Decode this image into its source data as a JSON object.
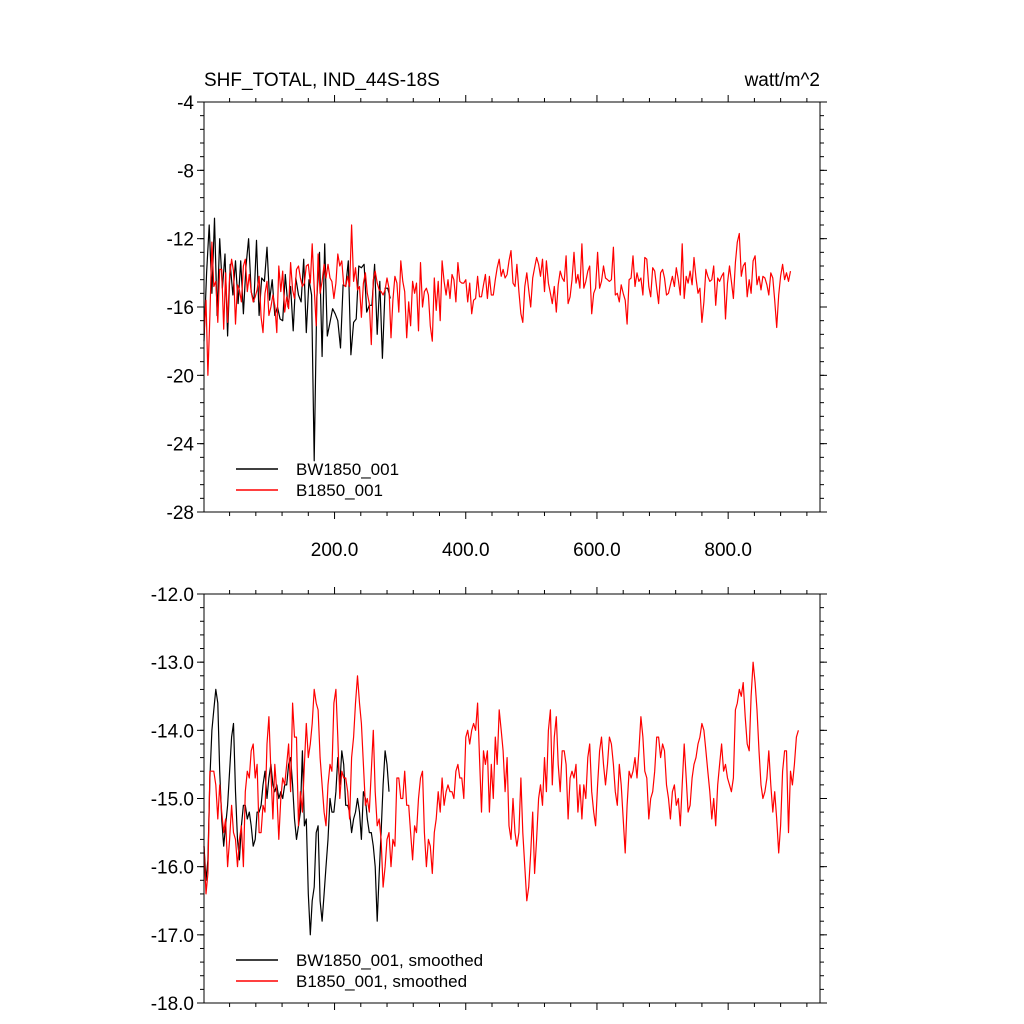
{
  "chart_data": [
    {
      "type": "line",
      "title": "SHF_TOTAL, IND_44S-18S",
      "units": "watt/m^2",
      "xlim": [
        1,
        940
      ],
      "ylim": [
        -28,
        -4
      ],
      "yticks": [
        "-4",
        "-8",
        "-12",
        "-16",
        "-20",
        "-24",
        "-28"
      ],
      "ytick_values": [
        -4,
        -8,
        -12,
        -16,
        -20,
        -24,
        -28
      ],
      "xticks": [
        "200.0",
        "400.0",
        "600.0",
        "800.0"
      ],
      "xtick_values": [
        200,
        400,
        600,
        800
      ],
      "grid": false,
      "legend_position": "bottom-left",
      "series": [
        {
          "name": "BW1850_001",
          "color": "#000000",
          "x_start": 1,
          "x_step": 4,
          "values": [
            -18.0,
            -14.0,
            -11.2,
            -15.2,
            -10.8,
            -16.5,
            -12.0,
            -14.9,
            -12.9,
            -17.7,
            -13.5,
            -15.3,
            -13.3,
            -15.8,
            -13.3,
            -16.4,
            -13.6,
            -12.0,
            -15.1,
            -15.7,
            -12.1,
            -16.5,
            -14.3,
            -14.5,
            -12.5,
            -15.6,
            -14.4,
            -16.5,
            -16.0,
            -16.7,
            -16.8,
            -14.1,
            -16.0,
            -14.8,
            -17.4,
            -14.3,
            -15.3,
            -15.7,
            -13.2,
            -17.5,
            -14.4,
            -15.3,
            -25.0,
            -15.5,
            -12.8,
            -18.9,
            -12.3,
            -17.7,
            -16.9,
            -16.1,
            -16.4,
            -16.8,
            -18.4,
            -14.7,
            -14.8,
            -13.3,
            -18.8,
            -16.9,
            -16.7,
            -13.6,
            -13.7,
            -13.5,
            -16.3,
            -15.9,
            -15.9,
            -13.5,
            -17.6,
            -14.5,
            -19.0,
            -14.9,
            -14.9,
            -15.5
          ]
        },
        {
          "name": "B1850_001",
          "color": "#ff0000",
          "x_start": 1,
          "x_step": 3,
          "values": [
            -17.6,
            -15.6,
            -20.0,
            -16.5,
            -12.2,
            -14.8,
            -14.5,
            -16.9,
            -13.8,
            -13.8,
            -17.3,
            -14.0,
            -16.9,
            -14.2,
            -13.2,
            -13.9,
            -17.0,
            -14.7,
            -15.0,
            -15.7,
            -13.6,
            -13.2,
            -15.1,
            -14.1,
            -15.1,
            -15.7,
            -15.4,
            -15.0,
            -14.2,
            -16.6,
            -17.5,
            -15.2,
            -14.5,
            -16.5,
            -16.0,
            -15.3,
            -15.9,
            -17.5,
            -13.6,
            -15.1,
            -13.9,
            -16.3,
            -15.4,
            -16.1,
            -13.4,
            -15.0,
            -15.5,
            -13.8,
            -13.6,
            -14.3,
            -14.8,
            -14.6,
            -13.6,
            -13.5,
            -14.6,
            -12.3,
            -14.9,
            -17.1,
            -12.9,
            -15.2,
            -14.5,
            -13.5,
            -14.3,
            -13.5,
            -14.3,
            -14.5,
            -15.5,
            -14.6,
            -12.9,
            -13.6,
            -13.3,
            -14.7,
            -14.8,
            -14.2,
            -14.8,
            -11.2,
            -14.5,
            -13.7,
            -15.0,
            -14.8,
            -16.6,
            -14.6,
            -14.0,
            -15.2,
            -15.8,
            -18.2,
            -14.4,
            -13.9,
            -14.6,
            -15.0,
            -15.1,
            -15.3,
            -15.0,
            -14.3,
            -14.9,
            -17.8,
            -15.6,
            -14.2,
            -14.6,
            -16.3,
            -13.3,
            -14.5,
            -15.1,
            -17.8,
            -15.7,
            -17.1,
            -14.5,
            -15.2,
            -14.6,
            -17.4,
            -13.4,
            -16.0,
            -15.1,
            -14.9,
            -15.3,
            -17.1,
            -18.0,
            -14.3,
            -16.2,
            -14.5,
            -16.8,
            -13.3,
            -14.5,
            -15.3,
            -14.4,
            -15.5,
            -14.1,
            -14.4,
            -15.7,
            -13.4,
            -14.5,
            -14.6,
            -14.6,
            -14.4,
            -15.7,
            -14.6,
            -16.4,
            -15.6,
            -15.5,
            -14.2,
            -15.4,
            -15.4,
            -14.7,
            -14.1,
            -15.5,
            -14.2,
            -15.3,
            -15.3,
            -14.4,
            -13.7,
            -13.2,
            -14.2,
            -13.8,
            -14.3,
            -14.1,
            -13.3,
            -12.7,
            -14.6,
            -14.8,
            -13.5,
            -15.1,
            -16.4,
            -16.9,
            -14.8,
            -14.0,
            -15.0,
            -16.0,
            -14.3,
            -13.7,
            -13.1,
            -13.5,
            -14.2,
            -13.2,
            -15.1,
            -13.3,
            -14.6,
            -15.2,
            -15.8,
            -14.8,
            -16.3,
            -14.7,
            -13.9,
            -14.3,
            -14.5,
            -13.0,
            -15.8,
            -15.4,
            -14.4,
            -12.8,
            -14.6,
            -14.1,
            -14.9,
            -12.3,
            -14.9,
            -14.5,
            -13.9,
            -13.6,
            -16.4,
            -15.2,
            -14.9,
            -12.8,
            -14.9,
            -14.5,
            -13.6,
            -14.3,
            -14.4,
            -14.5,
            -14.4,
            -12.5,
            -15.3,
            -15.2,
            -15.7,
            -14.7,
            -15.2,
            -15.6,
            -17.0,
            -14.4,
            -14.3,
            -13.0,
            -14.8,
            -14.0,
            -14.5,
            -14.3,
            -15.3,
            -13.1,
            -13.2,
            -14.8,
            -15.4,
            -13.7,
            -13.9,
            -14.9,
            -15.8,
            -14.0,
            -13.8,
            -14.3,
            -15.3,
            -15.2,
            -14.7,
            -14.2,
            -14.8,
            -13.7,
            -14.4,
            -15.3,
            -12.3,
            -15.5,
            -14.2,
            -14.6,
            -13.9,
            -14.7,
            -13.1,
            -14.3,
            -15.2,
            -14.9,
            -16.9,
            -15.7,
            -13.8,
            -14.2,
            -14.5,
            -14.4,
            -13.6,
            -15.9,
            -14.3,
            -14.5,
            -14.2,
            -14.0,
            -16.7,
            -14.6,
            -13.6,
            -14.5,
            -15.5,
            -13.4,
            -12.2,
            -11.7,
            -14.2,
            -13.6,
            -13.4,
            -15.4,
            -14.4,
            -15.2,
            -13.3,
            -13.0,
            -14.7,
            -14.2,
            -15.0,
            -14.2,
            -14.3,
            -14.7,
            -15.3,
            -14.0,
            -14.3,
            -15.6,
            -17.2,
            -15.3,
            -14.2,
            -13.5,
            -14.4,
            -14.0,
            -14.5,
            -13.9
          ]
        }
      ],
      "legend": [
        "BW1850_001",
        "B1850_001"
      ]
    },
    {
      "type": "line",
      "title": "",
      "xlim": [
        1,
        940
      ],
      "ylim": [
        -18.0,
        -12.0
      ],
      "yticks": [
        "-12.0",
        "-13.0",
        "-14.0",
        "-15.0",
        "-16.0",
        "-17.0",
        "-18.0"
      ],
      "ytick_values": [
        -12,
        -13,
        -14,
        -15,
        -16,
        -17,
        -18
      ],
      "xticks": [],
      "xtick_values": [
        200,
        400,
        600,
        800
      ],
      "grid": false,
      "legend_position": "bottom-left",
      "series": [
        {
          "name": "BW1850_001, smoothed",
          "color": "#000000",
          "x_start": 1,
          "x_step": 3,
          "values": [
            -15.7,
            -16.2,
            -15.9,
            -14.7,
            -14.0,
            -13.7,
            -13.4,
            -13.6,
            -14.6,
            -15.3,
            -15.7,
            -15.4,
            -15.1,
            -14.6,
            -14.1,
            -13.9,
            -14.9,
            -15.6,
            -15.9,
            -15.4,
            -15.1,
            -15.1,
            -15.3,
            -15.2,
            -15.4,
            -15.7,
            -15.6,
            -15.2,
            -15.2,
            -15.1,
            -14.8,
            -14.6,
            -15.0,
            -14.7,
            -14.5,
            -14.8,
            -14.9,
            -14.8,
            -15.0,
            -14.9,
            -15.0,
            -14.8,
            -14.8,
            -14.5,
            -14.4,
            -14.8,
            -15.3,
            -15.6,
            -15.4,
            -15.2,
            -14.3,
            -15.4,
            -15.3,
            -16.4,
            -17.0,
            -16.5,
            -16.3,
            -15.5,
            -15.4,
            -16.5,
            -16.8,
            -16.4,
            -16.0,
            -15.6,
            -15.0,
            -15.2,
            -15.2,
            -14.9,
            -14.4,
            -14.8,
            -14.3,
            -14.5,
            -15.1,
            -15.1,
            -15.2,
            -15.5,
            -15.3,
            -15.2,
            -15.0,
            -15.2,
            -15.6,
            -14.9,
            -15.0,
            -15.3,
            -15.5,
            -15.5,
            -15.7,
            -16.0,
            -16.8,
            -16.1,
            -15.5,
            -14.8,
            -14.3,
            -14.5,
            -14.9
          ]
        },
        {
          "name": "B1850_001, smoothed",
          "color": "#ff0000",
          "x_start": 1,
          "x_step": 3,
          "values": [
            -15.7,
            -16.4,
            -16.1,
            -14.6,
            -14.6,
            -14.6,
            -14.8,
            -15.3,
            -14.8,
            -15.2,
            -15.5,
            -15.3,
            -16.0,
            -15.6,
            -15.1,
            -15.5,
            -15.6,
            -16.0,
            -15.6,
            -15.4,
            -16.0,
            -14.9,
            -14.6,
            -14.7,
            -14.3,
            -14.2,
            -14.7,
            -14.5,
            -15.5,
            -15.5,
            -15.1,
            -15.2,
            -14.2,
            -13.8,
            -14.6,
            -15.3,
            -14.5,
            -14.9,
            -15.6,
            -15.0,
            -14.7,
            -14.8,
            -14.5,
            -14.2,
            -14.9,
            -13.6,
            -14.1,
            -14.1,
            -15.4,
            -14.9,
            -15.2,
            -14.5,
            -13.9,
            -14.4,
            -14.2,
            -13.9,
            -13.4,
            -13.6,
            -13.7,
            -14.4,
            -14.8,
            -15.2,
            -15.4,
            -14.8,
            -14.5,
            -14.6,
            -13.6,
            -13.4,
            -14.1,
            -15.0,
            -14.6,
            -14.7,
            -14.7,
            -14.9,
            -15.3,
            -14.4,
            -14.1,
            -13.6,
            -13.2,
            -13.6,
            -13.9,
            -14.5,
            -15.1,
            -15.0,
            -15.2,
            -14.6,
            -14.0,
            -14.9,
            -15.4,
            -15.3,
            -15.6,
            -16.3,
            -16.0,
            -15.6,
            -15.5,
            -16.0,
            -15.6,
            -15.7,
            -14.7,
            -14.7,
            -15.0,
            -15.0,
            -14.6,
            -15.1,
            -15.1,
            -15.5,
            -15.9,
            -15.4,
            -15.5,
            -15.0,
            -14.7,
            -14.6,
            -15.5,
            -16.0,
            -15.6,
            -15.7,
            -16.1,
            -15.5,
            -15.3,
            -14.9,
            -15.2,
            -14.7,
            -15.1,
            -14.9,
            -14.8,
            -14.9,
            -14.9,
            -15.0,
            -14.6,
            -14.5,
            -14.7,
            -14.7,
            -15.0,
            -14.1,
            -14.0,
            -14.2,
            -14.0,
            -13.9,
            -14.0,
            -13.6,
            -14.4,
            -15.2,
            -14.3,
            -14.5,
            -14.3,
            -15.2,
            -14.5,
            -15.0,
            -14.1,
            -14.5,
            -13.7,
            -14.0,
            -14.3,
            -14.9,
            -14.4,
            -15.4,
            -15.6,
            -15.0,
            -15.5,
            -15.7,
            -15.5,
            -14.7,
            -15.5,
            -16.0,
            -16.5,
            -16.3,
            -15.8,
            -15.2,
            -16.1,
            -15.6,
            -15.0,
            -14.8,
            -15.1,
            -14.4,
            -14.9,
            -14.0,
            -13.7,
            -14.8,
            -14.1,
            -13.8,
            -14.5,
            -14.9,
            -14.3,
            -14.3,
            -14.5,
            -15.3,
            -14.7,
            -14.6,
            -14.7,
            -14.5,
            -15.2,
            -14.8,
            -15.3,
            -14.8,
            -15.0,
            -14.4,
            -14.2,
            -14.9,
            -15.2,
            -15.4,
            -14.8,
            -14.3,
            -14.1,
            -14.5,
            -14.8,
            -14.5,
            -14.1,
            -14.2,
            -14.5,
            -14.9,
            -15.1,
            -14.5,
            -14.8,
            -15.3,
            -15.8,
            -15.1,
            -14.6,
            -14.7,
            -14.6,
            -14.4,
            -14.7,
            -14.3,
            -13.8,
            -14.1,
            -14.6,
            -14.7,
            -15.3,
            -15.0,
            -14.9,
            -14.6,
            -14.1,
            -14.1,
            -14.4,
            -14.2,
            -14.3,
            -14.8,
            -15.0,
            -15.3,
            -14.9,
            -14.8,
            -15.1,
            -15.0,
            -15.4,
            -14.8,
            -14.2,
            -14.7,
            -15.2,
            -15.1,
            -14.7,
            -14.5,
            -14.4,
            -14.2,
            -14.1,
            -13.9,
            -14.0,
            -14.3,
            -14.6,
            -14.9,
            -15.3,
            -15.0,
            -15.4,
            -14.8,
            -14.5,
            -14.2,
            -14.6,
            -14.5,
            -14.7,
            -14.8,
            -14.9,
            -14.7,
            -13.7,
            -13.6,
            -13.4,
            -13.5,
            -13.3,
            -13.8,
            -14.2,
            -14.3,
            -13.5,
            -13.0,
            -13.3,
            -13.7,
            -14.3,
            -14.8,
            -15.0,
            -14.9,
            -14.7,
            -14.3,
            -14.8,
            -15.2,
            -14.9,
            -15.3,
            -15.8,
            -15.4,
            -14.6,
            -14.3,
            -14.3,
            -15.5,
            -14.6,
            -14.8,
            -14.5,
            -14.1,
            -14.0
          ]
        }
      ],
      "legend": [
        "BW1850_001, smoothed",
        "B1850_001, smoothed"
      ]
    }
  ]
}
